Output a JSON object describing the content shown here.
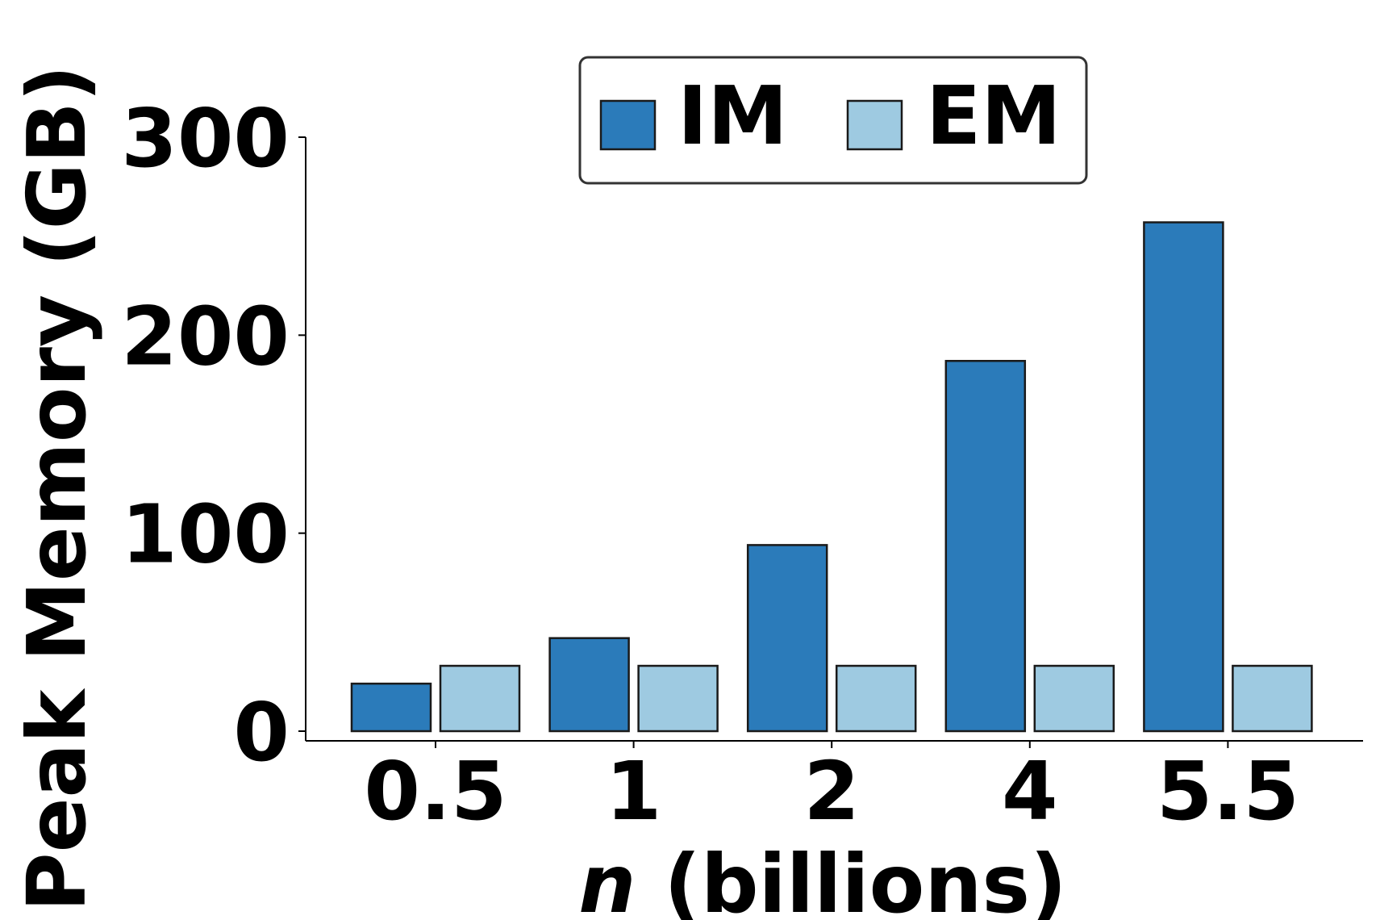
{
  "chart_data": {
    "type": "bar",
    "categories": [
      "0.5",
      "1",
      "2",
      "4",
      "5.5"
    ],
    "series": [
      {
        "name": "IM",
        "values": [
          24,
          47,
          94,
          187,
          257
        ],
        "color": "#2b7bba"
      },
      {
        "name": "EM",
        "values": [
          33,
          33,
          33,
          33,
          33
        ],
        "color": "#9ecae1"
      }
    ],
    "xlabel_var": "n",
    "xlabel_rest": " (billions)",
    "ylabel": "Peak Memory (GB)",
    "ylim": [
      0,
      300
    ],
    "yticks": [
      0,
      100,
      200,
      300
    ],
    "legend_position": "top-center",
    "grid": false
  }
}
